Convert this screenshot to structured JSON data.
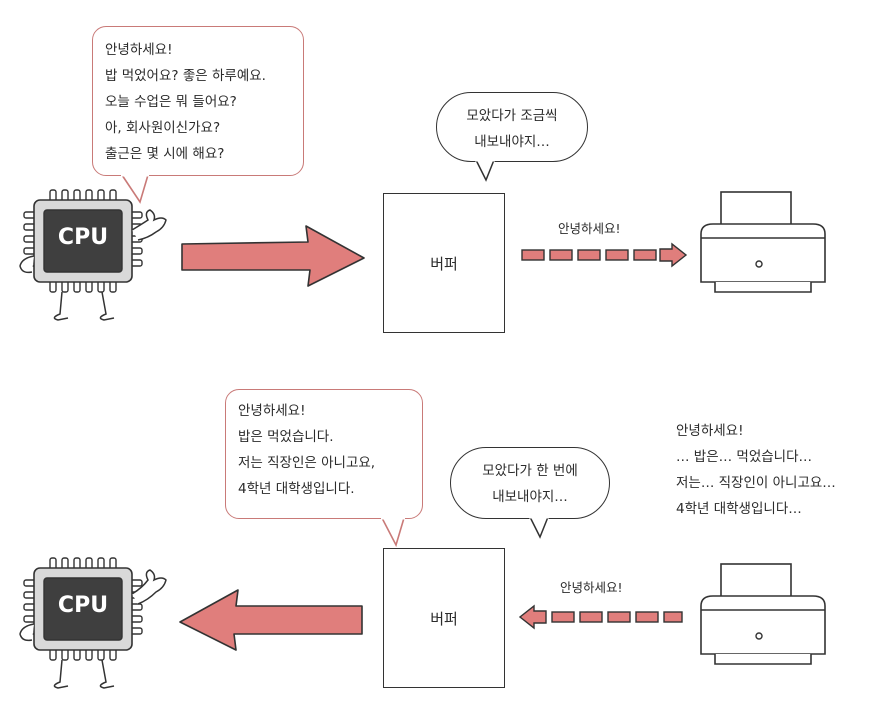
{
  "top": {
    "cpu_label": "CPU",
    "speech_lines": [
      "안녕하세요!",
      "밥 먹었어요? 좋은 하루예요.",
      "오늘 수업은 뭐 들어요?",
      "아, 회사원이신가요?",
      "출근은 몇 시에 해요?"
    ],
    "buffer_label": "버퍼",
    "thought_lines": [
      "모았다가 조금씩",
      "내보내야지…"
    ],
    "transfer_text": "안녕하세요!"
  },
  "bottom": {
    "cpu_label": "CPU",
    "speech_lines": [
      "안녕하세요!",
      "밥은 먹었습니다.",
      "저는 직장인은 아니고요,",
      "4학년 대학생입니다."
    ],
    "buffer_label": "버퍼",
    "thought_lines": [
      "모았다가 한 번에",
      "내보내야지…"
    ],
    "transfer_text": "안녕하세요!",
    "printer_text_lines": [
      "안녕하세요!",
      "… 밥은… 먹었습니다…",
      "저는… 직장인이 아니고요…",
      "4학년 대학생입니다…"
    ]
  },
  "colors": {
    "arrow_fill": "#e07e7c",
    "chip_body": "#3f3f3f",
    "bubble_border": "#c97a78",
    "outline": "#333333"
  }
}
